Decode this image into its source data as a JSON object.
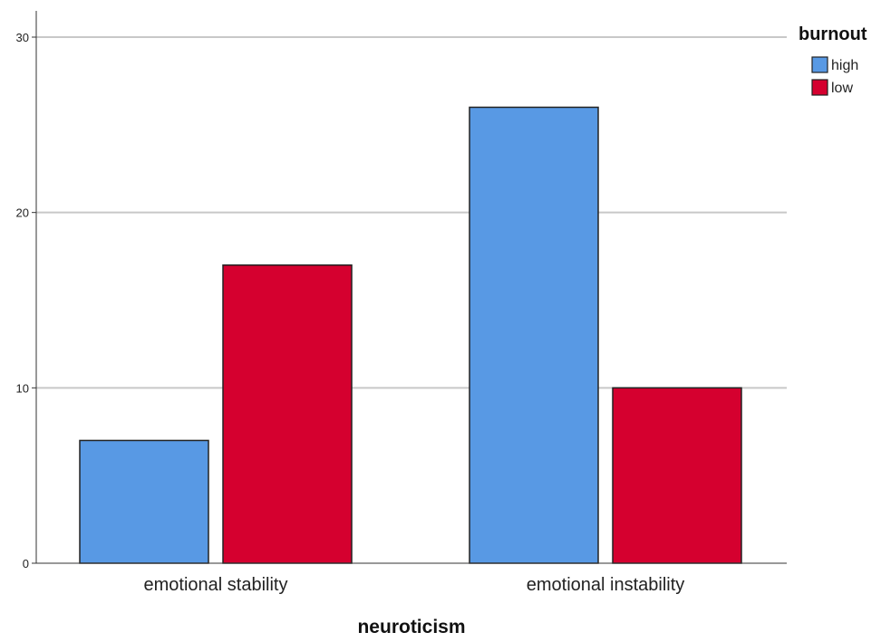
{
  "chart_data": {
    "type": "bar",
    "title": "",
    "xlabel": "neuroticism",
    "ylabel": "",
    "categories": [
      "emotional stability",
      "emotional instability"
    ],
    "series": [
      {
        "name": "high",
        "color": "#5899E4",
        "values": [
          7,
          26
        ]
      },
      {
        "name": "low",
        "color": "#D5002F",
        "values": [
          17,
          10
        ]
      }
    ],
    "ylim": [
      0,
      30
    ],
    "yticks": [
      0,
      10,
      20,
      30
    ],
    "grid": true,
    "legend": {
      "title": "burnout",
      "position": "top-right"
    }
  }
}
